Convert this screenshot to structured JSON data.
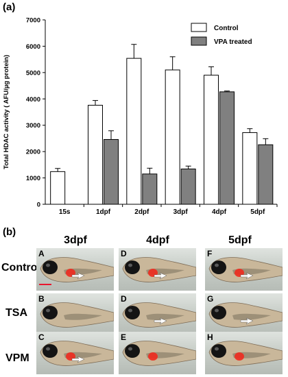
{
  "panel_a_label": "(a)",
  "panel_b_label": "(b)",
  "chart_data": {
    "type": "bar",
    "ylabel": "Total HDAC activity ( AFU/µg protein)",
    "xlabel": "",
    "ylim": [
      0,
      7000
    ],
    "yticks": [
      0,
      1000,
      2000,
      3000,
      4000,
      5000,
      6000,
      7000
    ],
    "categories": [
      "15s",
      "1dpf",
      "2dpf",
      "3dpf",
      "4dpf",
      "5dpf"
    ],
    "legend_position": "top-right",
    "grid": false,
    "series": [
      {
        "name": "Control",
        "color": "#ffffff",
        "values": [
          1240,
          3760,
          5540,
          5100,
          4900,
          2720
        ],
        "errors": [
          120,
          180,
          530,
          500,
          320,
          150
        ]
      },
      {
        "name": "VPA treated",
        "color": "#808080",
        "values": [
          null,
          2460,
          1150,
          1340,
          4270,
          2260
        ],
        "errors": [
          null,
          330,
          220,
          110,
          30,
          230
        ]
      }
    ]
  },
  "figure_b": {
    "columns": [
      "3dpf",
      "4dpf",
      "5dpf"
    ],
    "rows": [
      "Control",
      "TSA",
      "VPM"
    ],
    "panels": [
      [
        "A",
        "D",
        "F"
      ],
      [
        "B",
        "D",
        "G"
      ],
      [
        "C",
        "E",
        "H"
      ]
    ],
    "heart_color": "#f02a1e"
  }
}
